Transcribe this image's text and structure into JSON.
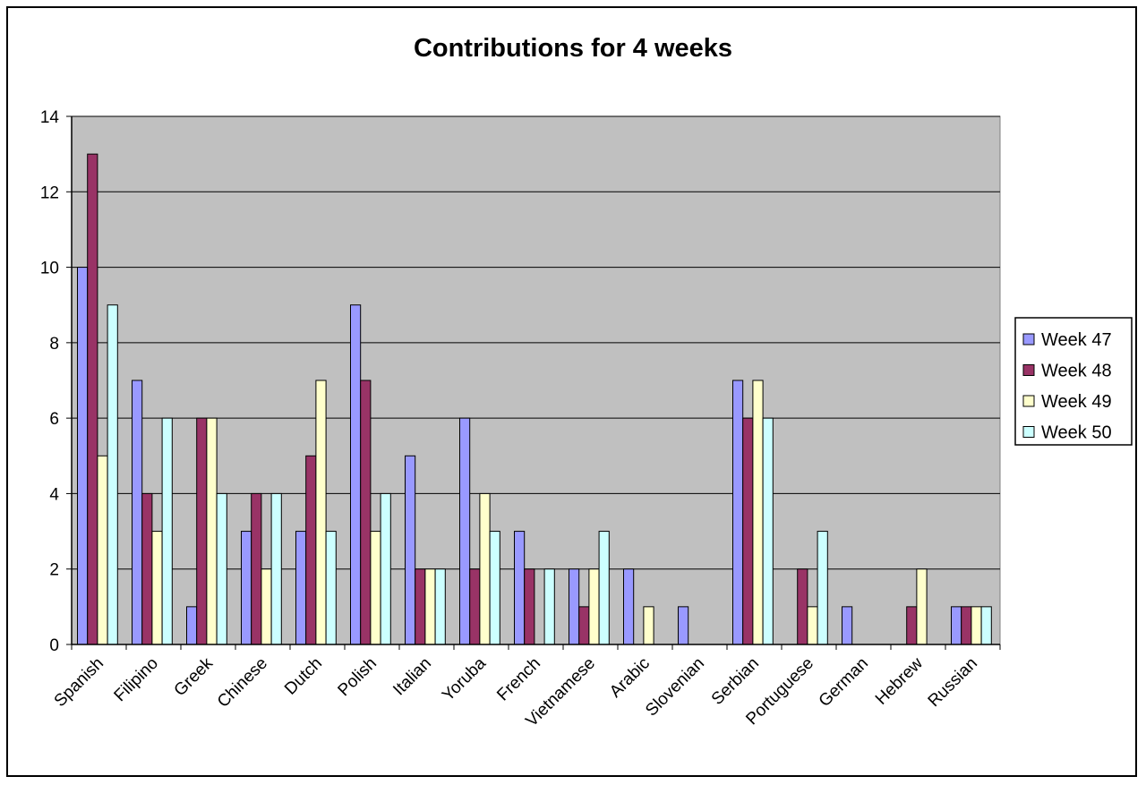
{
  "chart_data": {
    "type": "bar",
    "title": "Contributions for 4 weeks",
    "xlabel": "",
    "ylabel": "",
    "ylim": [
      0,
      14
    ],
    "yticks": [
      "0",
      "2",
      "4",
      "6",
      "8",
      "10",
      "12",
      "14"
    ],
    "grid": true,
    "legend_position": "right",
    "categories": [
      "Spanish",
      "Filipino",
      "Greek",
      "Chinese",
      "Dutch",
      "Polish",
      "Italian",
      "Yoruba",
      "French",
      "Vietnamese",
      "Arabic",
      "Slovenian",
      "Serbian",
      "Portuguese",
      "German",
      "Hebrew",
      "Russian"
    ],
    "series": [
      {
        "name": "Week 47",
        "color": "#9999ff",
        "values": [
          10,
          7,
          1,
          3,
          3,
          9,
          5,
          6,
          3,
          2,
          2,
          1,
          7,
          0,
          1,
          0,
          1
        ]
      },
      {
        "name": "Week 48",
        "color": "#993366",
        "values": [
          13,
          4,
          6,
          4,
          5,
          7,
          2,
          2,
          2,
          1,
          0,
          0,
          6,
          2,
          0,
          1,
          1
        ]
      },
      {
        "name": "Week 49",
        "color": "#ffffcc",
        "values": [
          5,
          3,
          6,
          2,
          7,
          3,
          2,
          4,
          0,
          2,
          1,
          0,
          7,
          1,
          0,
          2,
          1
        ]
      },
      {
        "name": "Week 50",
        "color": "#ccffff",
        "values": [
          9,
          6,
          4,
          4,
          3,
          4,
          2,
          3,
          2,
          3,
          0,
          0,
          6,
          3,
          0,
          0,
          1
        ]
      }
    ],
    "plot_background": "#c0c0c0"
  }
}
